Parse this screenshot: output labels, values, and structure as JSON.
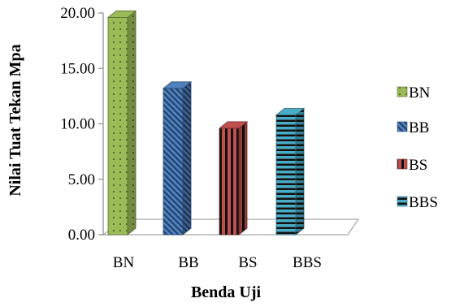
{
  "chart_data": {
    "type": "bar",
    "style": "3d-column",
    "title": "",
    "xlabel": "Benda Uji",
    "ylabel": "Nilai Tuat Tekan Mpa",
    "ylim": [
      0,
      20
    ],
    "yticks": [
      "0.00",
      "5.00",
      "10.00",
      "15.00",
      "20.00"
    ],
    "categories": [
      "BN",
      "BB",
      "BS",
      "BBS"
    ],
    "values": [
      19.6,
      13.2,
      9.6,
      10.8
    ],
    "grid": false,
    "legend_position": "right",
    "series": [
      {
        "name": "BN",
        "category": "BN",
        "value": 19.6,
        "color": "#9bbb59",
        "pattern": "dots"
      },
      {
        "name": "BB",
        "category": "BB",
        "value": 13.2,
        "color": "#4f81bd",
        "pattern": "diagonal-stripes"
      },
      {
        "name": "BS",
        "category": "BS",
        "value": 9.6,
        "color": "#c0504d",
        "pattern": "vertical-stripes"
      },
      {
        "name": "BBS",
        "category": "BBS",
        "value": 10.8,
        "color": "#4bacc6",
        "pattern": "horizontal-stripes"
      }
    ]
  }
}
